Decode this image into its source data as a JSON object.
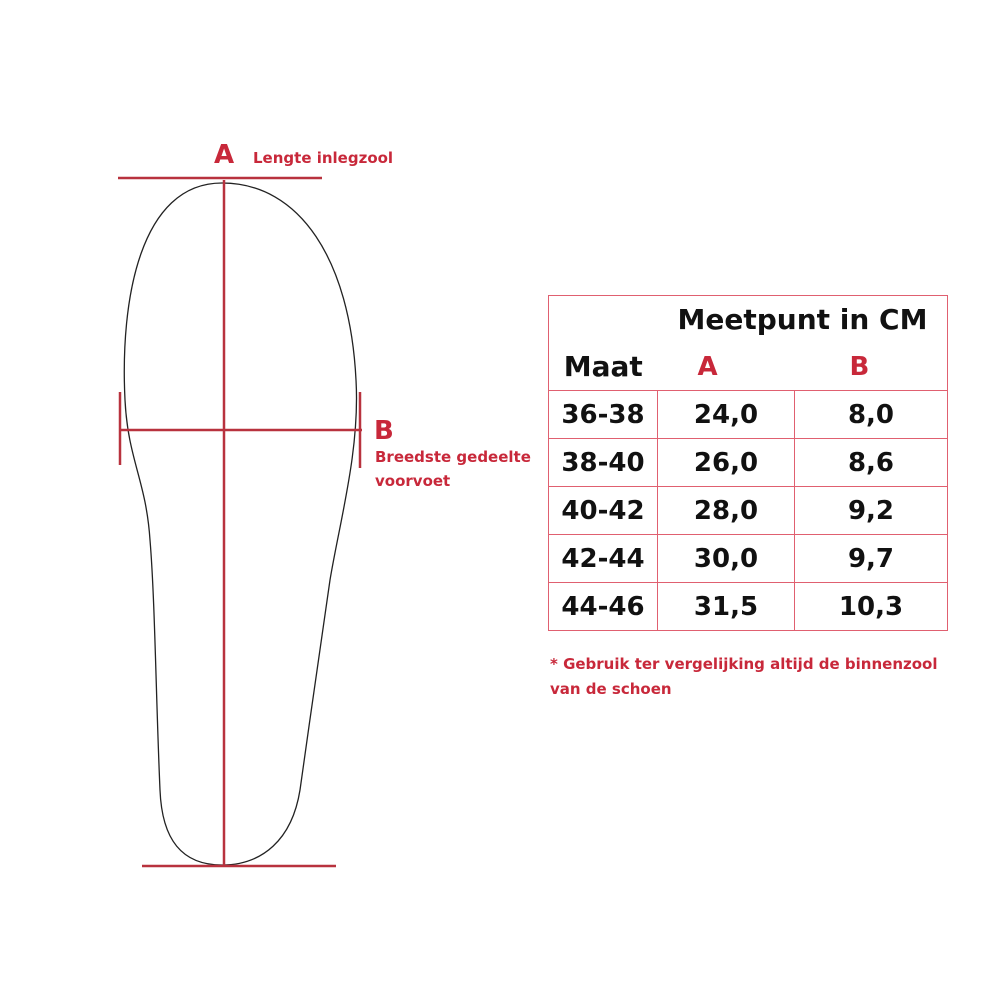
{
  "diagram": {
    "label_a": "A",
    "label_a_text": "Lengte inlegzool",
    "label_b": "B",
    "label_b_text_line1": "Breedste gedeelte",
    "label_b_text_line2": "voorvoet"
  },
  "table": {
    "title": "Meetpunt in CM",
    "col_size": "Maat",
    "col_a": "A",
    "col_b": "B",
    "rows": [
      {
        "size": "36-38",
        "a": "24,0",
        "b": "8,0"
      },
      {
        "size": "38-40",
        "a": "26,0",
        "b": "8,6"
      },
      {
        "size": "40-42",
        "a": "28,0",
        "b": "9,2"
      },
      {
        "size": "42-44",
        "a": "30,0",
        "b": "9,7"
      },
      {
        "size": "44-46",
        "a": "31,5",
        "b": "10,3"
      }
    ]
  },
  "footnote_line1": "* Gebruik ter vergelijking altijd de binnenzool",
  "footnote_line2": "van de schoen",
  "colors": {
    "accent": "#c8283a",
    "outline": "#222222",
    "table_border": "#e06070"
  }
}
